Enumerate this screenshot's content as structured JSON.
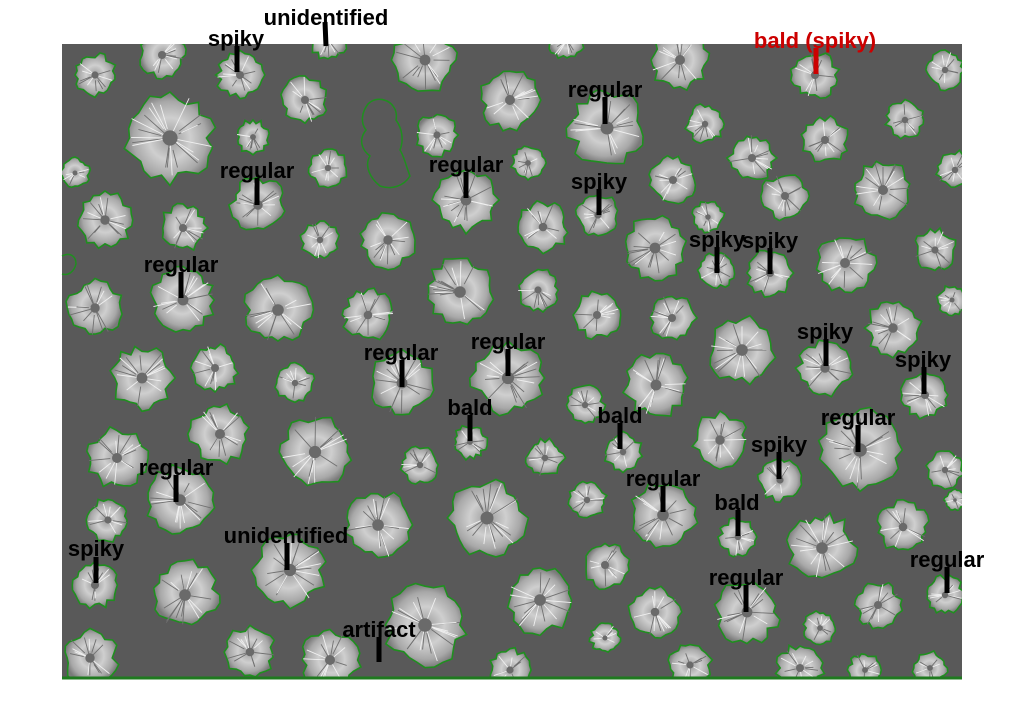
{
  "figure": {
    "background_color": "#595959",
    "outline_color": "#1f8f1f",
    "marker_color": "#000000",
    "highlight_color": "#cc0000"
  },
  "annotations": [
    {
      "label": "unidentified",
      "highlight": false
    },
    {
      "label": "spiky",
      "highlight": false
    },
    {
      "label": "bald (spiky)",
      "highlight": true
    },
    {
      "label": "regular",
      "highlight": false
    },
    {
      "label": "regular",
      "highlight": false
    },
    {
      "label": "regular",
      "highlight": false
    },
    {
      "label": "spiky",
      "highlight": false
    },
    {
      "label": "spiky",
      "highlight": false
    },
    {
      "label": "spiky",
      "highlight": false
    },
    {
      "label": "regular",
      "highlight": false
    },
    {
      "label": "regular",
      "highlight": false
    },
    {
      "label": "regular",
      "highlight": false
    },
    {
      "label": "spiky",
      "highlight": false
    },
    {
      "label": "spiky",
      "highlight": false
    },
    {
      "label": "bald",
      "highlight": false
    },
    {
      "label": "bald",
      "highlight": false
    },
    {
      "label": "regular",
      "highlight": false
    },
    {
      "label": "regular",
      "highlight": false
    },
    {
      "label": "spiky",
      "highlight": false
    },
    {
      "label": "regular",
      "highlight": false
    },
    {
      "label": "bald",
      "highlight": false
    },
    {
      "label": "spiky",
      "highlight": false
    },
    {
      "label": "regular",
      "highlight": false
    },
    {
      "label": "unidentified",
      "highlight": false
    },
    {
      "label": "regular",
      "highlight": false
    },
    {
      "label": "artifact",
      "highlight": false
    }
  ]
}
